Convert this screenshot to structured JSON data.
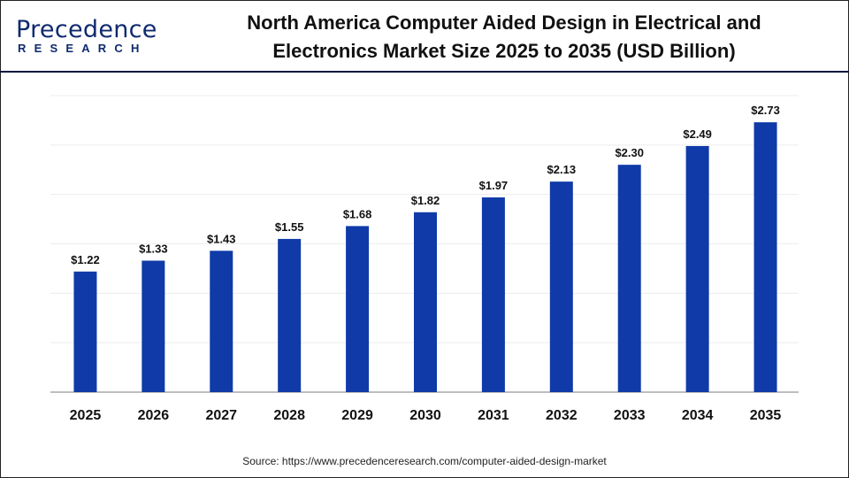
{
  "logo": {
    "text_top": "Precedence",
    "text_bottom": "RESEARCH"
  },
  "header": {
    "title_line1": "North America Computer Aided Design in Electrical and",
    "title_line2": "Electronics Market Size 2025 to 2035 (USD Billion)"
  },
  "source": "Source: https://www.precedenceresearch.com/computer-aided-design-market",
  "chart_data": {
    "type": "bar",
    "title": "North America Computer Aided Design in Electrical and Electronics Market Size 2025 to 2035 (USD Billion)",
    "categories": [
      "2025",
      "2026",
      "2027",
      "2028",
      "2029",
      "2030",
      "2031",
      "2032",
      "2033",
      "2034",
      "2035"
    ],
    "values": [
      1.22,
      1.33,
      1.43,
      1.55,
      1.68,
      1.82,
      1.97,
      2.13,
      2.3,
      2.49,
      2.73
    ],
    "data_labels": [
      "$1.22",
      "$1.33",
      "$1.43",
      "$1.55",
      "$1.68",
      "$1.82",
      "$1.97",
      "$2.13",
      "$2.30",
      "$2.49",
      "$2.73"
    ],
    "xlabel": "",
    "ylabel": "",
    "ylim": [
      0,
      3
    ],
    "grid": true,
    "y_axis_labels_shown": false,
    "bar_color": "#0f3aa8"
  }
}
